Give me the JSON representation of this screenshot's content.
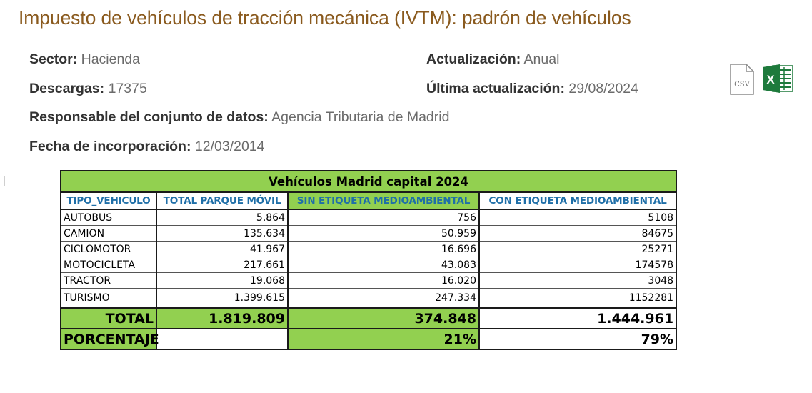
{
  "page": {
    "title": "Impuesto de vehículos de tracción mecánica (IVTM): padrón de vehículos"
  },
  "meta": {
    "sector_label": "Sector:",
    "sector_value": "Hacienda",
    "descargas_label": "Descargas:",
    "descargas_value": "17375",
    "actualizacion_label": "Actualización:",
    "actualizacion_value": "Anual",
    "ultima_label": "Última actualización:",
    "ultima_value": "29/08/2024",
    "responsable_label": "Responsable del conjunto de datos:",
    "responsable_value": "Agencia Tributaria de Madrid",
    "incorporacion_label": "Fecha de incorporación:",
    "incorporacion_value": "12/03/2014"
  },
  "downloads": {
    "csv_icon": "csv-file-icon",
    "csv_text": "CSV",
    "excel_icon": "excel-file-icon",
    "excel_text": "X"
  },
  "table": {
    "title": "Vehículos Madrid capital 2024",
    "headers": [
      "TIPO_VEHICULO",
      "TOTAL PARQUE MÓVIL",
      "SIN ETIQUETA MEDIOAMBIENTAL",
      "CON ETIQUETA MEDIOAMBIENTAL"
    ],
    "rows": [
      {
        "tipo": "AUTOBUS",
        "total": "5.864",
        "sin": "756",
        "con": "5108"
      },
      {
        "tipo": "CAMION",
        "total": "135.634",
        "sin": "50.959",
        "con": "84675"
      },
      {
        "tipo": "CICLOMOTOR",
        "total": "41.967",
        "sin": "16.696",
        "con": "25271"
      },
      {
        "tipo": "MOTOCICLETA",
        "total": "217.661",
        "sin": "43.083",
        "con": "174578"
      },
      {
        "tipo": "TRACTOR",
        "total": "19.068",
        "sin": "16.020",
        "con": "3048"
      },
      {
        "tipo": "TURISMO",
        "total": "1.399.615",
        "sin": "247.334",
        "con": "1152281"
      }
    ],
    "total_row": {
      "label": "TOTAL",
      "total": "1.819.809",
      "sin": "374.848",
      "con": "1.444.961"
    },
    "pct_row": {
      "label": "PORCENTAJE",
      "total": "",
      "sin": "21%",
      "con": "79%"
    }
  },
  "colors": {
    "title_brown": "#8a5a1e",
    "table_green": "#92d050",
    "header_blue": "#1f6fa8",
    "excel_green": "#1e7a3c"
  }
}
